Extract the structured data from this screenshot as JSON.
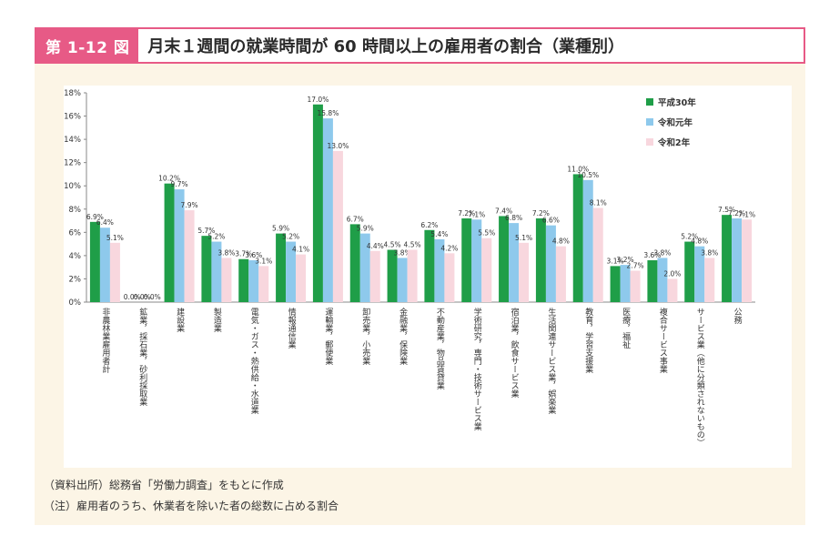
{
  "header": {
    "figure_number": "第 1-12 図",
    "title": "月末１週間の就業時間が 60 時間以上の雇用者の割合（業種別）"
  },
  "notes": {
    "source": "（資料出所）総務省「労働力調査」をもとに作成",
    "note": "（注）雇用者のうち、休業者を除いた者の総数に占める割合"
  },
  "colors": {
    "series": [
      "#1f9e48",
      "#8ec9ec",
      "#f8d7de"
    ],
    "title_accent": "#e75a86",
    "panel_background": "#fcf5e6"
  },
  "chart_data": {
    "type": "bar",
    "title": "月末１週間の就業時間が 60 時間以上の雇用者の割合（業種別）",
    "xlabel": "",
    "ylabel": "",
    "ylim": [
      0,
      18
    ],
    "yticks": [
      "0%",
      "2%",
      "4%",
      "6%",
      "8%",
      "10%",
      "12%",
      "14%",
      "16%",
      "18%"
    ],
    "grid": false,
    "legend": "top-right",
    "categories": [
      "非農林業雇用者計",
      "鉱業，採石業，砂利採取業",
      "建設業",
      "製造業",
      "電気・ガス・熱供給・水道業",
      "情報通信業",
      "運輸業，郵便業",
      "卸売業，小売業",
      "金融業，保険業",
      "不動産業，物品賃貸業",
      "学術研究，専門・技術サービス業",
      "宿泊業，飲食サービス業",
      "生活関連サービス業，娯楽業",
      "教育，学習支援業",
      "医療，福祉",
      "複合サービス事業",
      "サービス業（他に分類されないもの）",
      "公務"
    ],
    "series": [
      {
        "name": "平成30年",
        "values": [
          6.9,
          0.0,
          10.2,
          5.7,
          3.7,
          5.9,
          17.0,
          6.7,
          4.5,
          6.2,
          7.2,
          7.4,
          7.2,
          11.0,
          3.1,
          3.6,
          5.2,
          7.5
        ],
        "labels": [
          "6.9%",
          "0.0%",
          "10.2%",
          "5.7%",
          "3.7%",
          "5.9%",
          "17.0%",
          "6.7%",
          "4.5%",
          "6.2%",
          "7.2%",
          "7.4%",
          "7.2%",
          "11.0%",
          "3.1%",
          "3.6%",
          "5.2%",
          "7.5%"
        ]
      },
      {
        "name": "令和元年",
        "values": [
          6.4,
          0.0,
          9.7,
          5.2,
          3.6,
          5.2,
          15.8,
          5.9,
          3.8,
          5.4,
          7.1,
          6.8,
          6.6,
          10.5,
          3.2,
          3.8,
          4.8,
          7.2
        ],
        "labels": [
          "6.4%",
          "0.0%",
          "9.7%",
          "5.2%",
          "3.6%",
          "5.2%",
          "15.8%",
          "5.9%",
          "3.8%",
          "5.4%",
          "7.1%",
          "6.8%",
          "6.6%",
          "10.5%",
          "3.2%",
          "3.8%",
          "4.8%",
          "7.2%"
        ]
      },
      {
        "name": "令和2年",
        "values": [
          5.1,
          0.0,
          7.9,
          3.8,
          3.1,
          4.1,
          13.0,
          4.4,
          4.5,
          4.2,
          5.5,
          5.1,
          4.8,
          8.1,
          2.7,
          2.0,
          3.8,
          7.1
        ],
        "labels": [
          "5.1%",
          "0.0%",
          "7.9%",
          "3.8%",
          "3.1%",
          "4.1%",
          "13.0%",
          "4.4%",
          "4.5%",
          "4.2%",
          "5.5%",
          "5.1%",
          "4.8%",
          "8.1%",
          "2.7%",
          "2.0%",
          "3.8%",
          "7.1%"
        ]
      }
    ]
  }
}
